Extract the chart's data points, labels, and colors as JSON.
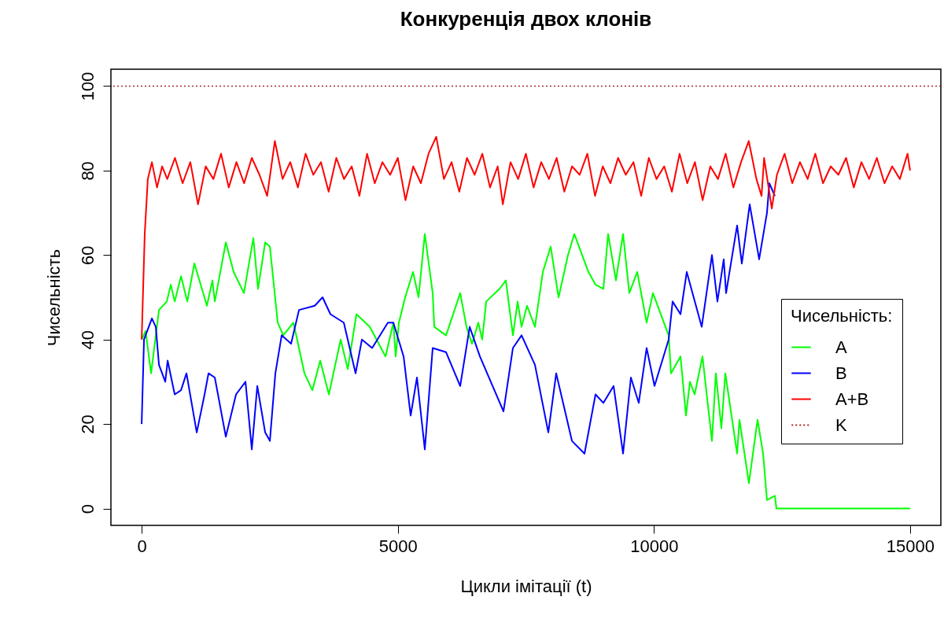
{
  "chart_data": {
    "type": "line",
    "title": "Конкуренція двох клонів",
    "xlabel": "Цикли імітації (t)",
    "ylabel": "Чисельність",
    "legend_title": "Чисельність:",
    "legend": "right",
    "line_style": "solid",
    "xlim": [
      -600,
      15600
    ],
    "ylim": [
      -4,
      104
    ],
    "xticks": [
      0,
      5000,
      10000,
      15000
    ],
    "yticks": [
      0,
      20,
      40,
      60,
      80,
      100
    ],
    "ref_lines": [
      {
        "axis": "y",
        "value": 100,
        "label": "K",
        "color": "#a52a2a",
        "line_style": "dotted"
      }
    ],
    "series": [
      {
        "name": "A",
        "color": "#00ff00",
        "x": [
          0,
          77,
          184,
          338,
          491,
          568,
          645,
          768,
          891,
          1029,
          1274,
          1382,
          1428,
          1643,
          1796,
          1996,
          2180,
          2272,
          2411,
          2503,
          2656,
          2764,
          2963,
          3178,
          3332,
          3485,
          3654,
          3885,
          4023,
          4192,
          4453,
          4760,
          4913,
          4959,
          5021,
          5144,
          5297,
          5405,
          5527,
          5681,
          5712,
          5942,
          6218,
          6341,
          6449,
          6571,
          6648,
          6725,
          6986,
          7109,
          7247,
          7339,
          7416,
          7523,
          7677,
          7831,
          7984,
          8138,
          8322,
          8445,
          8598,
          8721,
          8859,
          9013,
          9105,
          9258,
          9397,
          9519,
          9673,
          9857,
          9980,
          10287,
          10333,
          10518,
          10625,
          10702,
          10794,
          10947,
          11132,
          11208,
          11316,
          11393,
          11623,
          11669,
          11853,
          12022,
          12130,
          12206,
          12360,
          12391,
          15000
        ],
        "values": [
          40,
          42,
          32,
          47,
          49,
          53,
          49,
          55,
          49,
          58,
          48,
          54,
          49,
          63,
          56,
          51,
          64,
          52,
          63,
          62,
          44,
          41,
          44,
          32,
          28,
          35,
          27,
          40,
          33,
          46,
          43,
          36,
          44,
          36,
          44,
          50,
          56,
          50,
          65,
          51,
          43,
          41,
          51,
          43,
          39,
          44,
          40,
          49,
          52,
          54,
          41,
          49,
          43,
          48,
          43,
          56,
          62,
          50,
          60,
          65,
          60,
          56,
          53,
          52,
          65,
          54,
          65,
          51,
          56,
          44,
          51,
          41,
          32,
          36,
          22,
          30,
          27,
          36,
          16,
          32,
          19,
          32,
          13,
          21,
          6,
          21,
          13,
          2,
          3,
          0,
          0
        ]
      },
      {
        "name": "B",
        "color": "#0000ff",
        "x": [
          0,
          46,
          200,
          276,
          338,
          461,
          507,
          645,
          768,
          875,
          1075,
          1228,
          1305,
          1428,
          1643,
          1842,
          2027,
          2150,
          2257,
          2411,
          2503,
          2610,
          2733,
          2917,
          3071,
          3378,
          3531,
          3685,
          3946,
          4176,
          4299,
          4499,
          4806,
          4913,
          5113,
          5251,
          5374,
          5527,
          5681,
          5942,
          6218,
          6403,
          6602,
          7063,
          7247,
          7416,
          7677,
          7938,
          8092,
          8399,
          8644,
          8859,
          9013,
          9212,
          9397,
          9550,
          9703,
          9857,
          10011,
          10287,
          10364,
          10518,
          10640,
          10932,
          11132,
          11239,
          11362,
          11408,
          11623,
          11715,
          11869,
          12053,
          12206,
          12252,
          12360
        ],
        "values": [
          20,
          40,
          45,
          43,
          34,
          30,
          35,
          27,
          28,
          32,
          18,
          27,
          32,
          31,
          17,
          27,
          30,
          14,
          29,
          18,
          16,
          32,
          41,
          39,
          47,
          48,
          50,
          46,
          44,
          32,
          40,
          38,
          44,
          44,
          36,
          22,
          31,
          14,
          38,
          37,
          29,
          43,
          36,
          23,
          38,
          41,
          34,
          18,
          32,
          16,
          13,
          27,
          25,
          29,
          13,
          31,
          25,
          38,
          29,
          40,
          49,
          46,
          56,
          43,
          60,
          49,
          59,
          51,
          67,
          58,
          72,
          59,
          70,
          77,
          74
        ]
      },
      {
        "name": "A+B",
        "color": "#ff0000",
        "x": [
          0,
          60,
          120,
          200,
          300,
          400,
          500,
          650,
          800,
          950,
          1100,
          1250,
          1400,
          1550,
          1700,
          1850,
          2000,
          2150,
          2300,
          2450,
          2600,
          2750,
          2900,
          3050,
          3200,
          3350,
          3500,
          3650,
          3800,
          3950,
          4100,
          4250,
          4400,
          4550,
          4700,
          4850,
          5000,
          5150,
          5300,
          5450,
          5600,
          5750,
          5900,
          6050,
          6200,
          6350,
          6500,
          6650,
          6800,
          6950,
          7050,
          7200,
          7350,
          7500,
          7650,
          7800,
          7950,
          8100,
          8250,
          8400,
          8550,
          8700,
          8850,
          9000,
          9150,
          9300,
          9450,
          9600,
          9750,
          9900,
          10050,
          10200,
          10350,
          10500,
          10650,
          10800,
          10950,
          11100,
          11250,
          11400,
          11550,
          11700,
          11850,
          12000,
          12100,
          12150,
          12300,
          12400,
          12550,
          12700,
          12850,
          13000,
          13150,
          13300,
          13450,
          13600,
          13750,
          13900,
          14050,
          14200,
          14350,
          14500,
          14650,
          14800,
          14950,
          15000
        ],
        "values": [
          40,
          65,
          78,
          82,
          76,
          81,
          78,
          83,
          77,
          82,
          72,
          81,
          78,
          84,
          76,
          82,
          77,
          83,
          79,
          74,
          87,
          78,
          82,
          76,
          84,
          79,
          82,
          75,
          83,
          78,
          81,
          74,
          84,
          77,
          82,
          79,
          83,
          73,
          81,
          77,
          84,
          88,
          78,
          82,
          75,
          83,
          79,
          84,
          76,
          81,
          72,
          82,
          78,
          84,
          76,
          82,
          78,
          83,
          75,
          81,
          79,
          84,
          74,
          81,
          77,
          83,
          79,
          82,
          74,
          83,
          78,
          81,
          75,
          84,
          77,
          82,
          73,
          81,
          78,
          84,
          76,
          82,
          87,
          78,
          74,
          83,
          71,
          79,
          84,
          77,
          82,
          78,
          84,
          77,
          81,
          79,
          83,
          76,
          82,
          78,
          83,
          77,
          81,
          78,
          84,
          80
        ]
      }
    ]
  }
}
